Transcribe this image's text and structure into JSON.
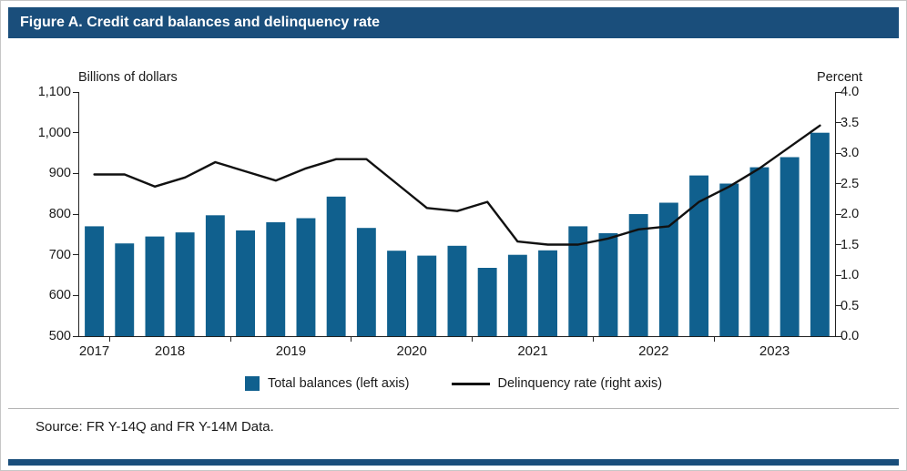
{
  "title": "Figure A. Credit card balances and delinquency rate",
  "chart_data": {
    "type": "bar+line",
    "title": "Figure A. Credit card balances and delinquency rate",
    "categories": [
      "2017 Q4",
      "2018 Q1",
      "2018 Q2",
      "2018 Q3",
      "2018 Q4",
      "2019 Q1",
      "2019 Q2",
      "2019 Q3",
      "2019 Q4",
      "2020 Q1",
      "2020 Q2",
      "2020 Q3",
      "2020 Q4",
      "2021 Q1",
      "2021 Q2",
      "2021 Q3",
      "2021 Q4",
      "2022 Q1",
      "2022 Q2",
      "2022 Q3",
      "2022 Q4",
      "2023 Q1",
      "2023 Q2",
      "2023 Q3",
      "2023 Q4"
    ],
    "series": [
      {
        "name": "Total balances (left axis)",
        "type": "bar",
        "axis": "left",
        "unit": "billions of dollars",
        "color": "#10608e",
        "values": [
          770,
          728,
          745,
          755,
          797,
          760,
          780,
          790,
          843,
          766,
          710,
          698,
          722,
          668,
          700,
          711,
          770,
          753,
          800,
          828,
          895,
          875,
          915,
          940,
          1000
        ]
      },
      {
        "name": "Delinquency rate (right axis)",
        "type": "line",
        "axis": "right",
        "unit": "percent",
        "color": "#111111",
        "values": [
          2.65,
          2.65,
          2.45,
          2.6,
          2.85,
          2.7,
          2.55,
          2.75,
          2.9,
          2.9,
          2.5,
          2.1,
          2.05,
          2.2,
          1.55,
          1.5,
          1.5,
          1.6,
          1.75,
          1.8,
          2.2,
          2.45,
          2.75,
          3.1,
          3.45
        ]
      }
    ],
    "left_axis": {
      "label": "Billions of dollars",
      "range": [
        500,
        1100
      ],
      "tick_step": 100,
      "ticks": [
        "1,100",
        "1,000",
        "900",
        "800",
        "700",
        "600",
        "500"
      ]
    },
    "right_axis": {
      "label": "Percent",
      "range": [
        0,
        4
      ],
      "tick_step": 0.5,
      "ticks": [
        "4.0",
        "3.5",
        "3.0",
        "2.5",
        "2.0",
        "1.5",
        "1.0",
        "0.5",
        "0.0"
      ]
    },
    "x_axis": {
      "year_labels": [
        "2017",
        "2018",
        "2019",
        "2020",
        "2021",
        "2022",
        "2023"
      ]
    },
    "grid": false,
    "legend_position": "bottom"
  },
  "legend": {
    "bar_label": "Total balances (left axis)",
    "line_label": "Delinquency rate (right axis)"
  },
  "source": "Source: FR Y-14Q and FR Y-14M Data.",
  "colors": {
    "header_bg": "#1a4e7b",
    "bar": "#10608e",
    "line": "#111111",
    "accent_strip": "#1a4e7b",
    "axis": "#222222"
  }
}
